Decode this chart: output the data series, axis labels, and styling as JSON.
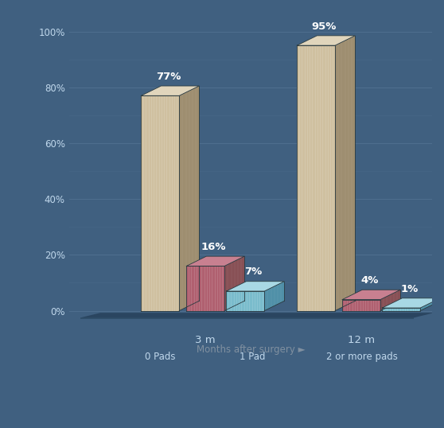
{
  "groups": [
    "3 m",
    "12 m"
  ],
  "categories": [
    "0 Pads",
    "1 Pad",
    "2 or more pads"
  ],
  "values": [
    [
      77,
      16,
      7
    ],
    [
      95,
      4,
      1
    ]
  ],
  "labels": [
    [
      "77%",
      "16%",
      "7%"
    ],
    [
      "95%",
      "4%",
      "1%"
    ]
  ],
  "bar_colors_face": [
    "#cfc0a0",
    "#b06070",
    "#7abccc"
  ],
  "bar_colors_top": [
    "#e0d5bc",
    "#c88090",
    "#a8d8e4"
  ],
  "bar_colors_side": [
    "#9e8e70",
    "#885055",
    "#5090a8"
  ],
  "background_color": "#406080",
  "grid_color": "#507090",
  "axis_label_color": "#c0d8ec",
  "bar_label_color": "#ffffff",
  "xlabel": "Months after surgery ►",
  "xlabel_color": "#8090a0",
  "ylabel_ticks": [
    "0%",
    "20%",
    "40%",
    "60%",
    "80%",
    "100%"
  ],
  "ylabel_values": [
    0,
    20,
    40,
    60,
    80,
    100
  ],
  "legend_items": [
    "0 Pads",
    "1 Pad",
    "2 or more pads"
  ],
  "floor_color": "#304f6a",
  "floor_top_color": "#2a4560",
  "wall_color": "#3a5878"
}
